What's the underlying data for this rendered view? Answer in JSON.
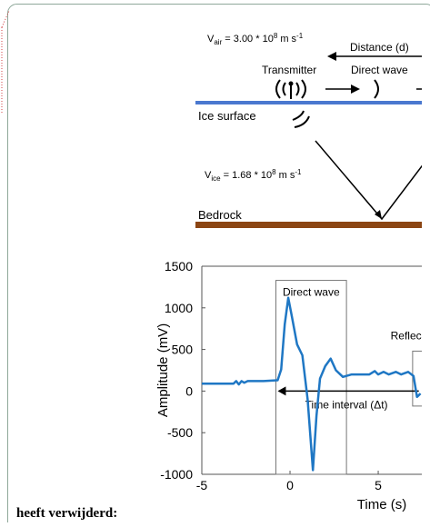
{
  "diagram": {
    "v_air": [
      "V",
      "air",
      " = 3.00 * 10",
      "8",
      " m s",
      "-1"
    ],
    "distance": "Distance (d)",
    "transmitter": "Transmitter",
    "direct_wave": "Direct wave",
    "ice_surface": "Ice surface",
    "v_ice": [
      "V",
      "ice",
      " = 1.68 * 10",
      "8",
      " m s",
      "-1"
    ],
    "bedrock": "Bedrock"
  },
  "chart_data": {
    "type": "line",
    "color": "#1f77c4",
    "x_label": "Time (s)",
    "y_label": "Amplitude (mV)",
    "x": [
      -5,
      -4,
      -3.2,
      -3.05,
      -2.9,
      -2.75,
      -2.6,
      -2.4,
      -1.5,
      -0.7,
      -0.5,
      -0.3,
      -0.1,
      0.1,
      0.4,
      0.7,
      1.0,
      1.3,
      1.5,
      1.7,
      2.0,
      2.3,
      2.6,
      3.0,
      3.5,
      4.0,
      4.5,
      4.8,
      5.0,
      5.3,
      5.6,
      6.0,
      6.3,
      6.7,
      7.0,
      7.2,
      7.4
    ],
    "values": [
      90,
      90,
      90,
      120,
      80,
      120,
      100,
      120,
      120,
      130,
      260,
      800,
      1120,
      900,
      560,
      430,
      -100,
      -950,
      -300,
      150,
      300,
      390,
      250,
      170,
      200,
      200,
      200,
      240,
      200,
      230,
      200,
      230,
      200,
      230,
      180,
      -70,
      -30
    ],
    "xlim": [
      -5,
      7.42
    ],
    "ylim": [
      -1000,
      1500
    ],
    "xticks": [
      -5,
      0,
      5
    ],
    "yticks": [
      -1000,
      -500,
      0,
      500,
      1000,
      1500
    ],
    "annotations": [
      "Direct wave",
      "Reflec",
      "Time interval (Δt)"
    ]
  },
  "footer": "heeft verwijderd:"
}
